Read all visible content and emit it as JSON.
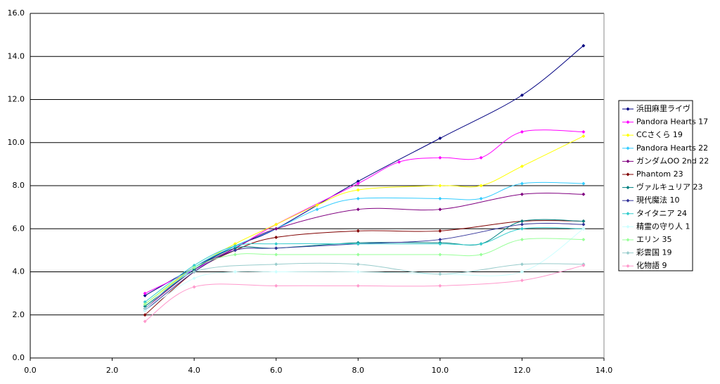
{
  "chart_data": {
    "type": "scatter-smooth",
    "xlim": [
      0,
      14
    ],
    "xticks": [
      {
        "value": 0,
        "label": "0.0"
      },
      {
        "value": 2,
        "label": "2.0"
      },
      {
        "value": 4,
        "label": "4.0"
      },
      {
        "value": 6,
        "label": "6.0"
      },
      {
        "value": 8,
        "label": "8.0"
      },
      {
        "value": 10,
        "label": "10.0"
      },
      {
        "value": 12,
        "label": "12.0"
      },
      {
        "value": 14,
        "label": "14.0"
      }
    ],
    "ylim": [
      0,
      16
    ],
    "yticks": [
      {
        "value": 0,
        "label": "0.0"
      },
      {
        "value": 2,
        "label": "2.0"
      },
      {
        "value": 4,
        "label": "4.0"
      },
      {
        "value": 6,
        "label": "6.0"
      },
      {
        "value": 8,
        "label": "8.0"
      },
      {
        "value": 10,
        "label": "10.0"
      },
      {
        "value": 12,
        "label": "12.0"
      },
      {
        "value": 14,
        "label": "14.0"
      },
      {
        "value": 16,
        "label": "16.0"
      }
    ],
    "grid": true,
    "legend_position": "right",
    "series": [
      {
        "name": "浜田麻里ライヴ",
        "color": "#000080",
        "x": [
          2.8,
          4,
          5,
          6,
          8,
          10,
          12,
          13.5
        ],
        "values": [
          2.9,
          4.2,
          5.2,
          6.0,
          8.2,
          10.2,
          12.2,
          14.5
        ]
      },
      {
        "name": "Pandora Hearts 17",
        "color": "#ff00ff",
        "x": [
          2.8,
          4,
          5,
          6,
          8,
          9,
          10,
          11,
          12,
          13.5
        ],
        "values": [
          3.0,
          4.1,
          5.1,
          6.2,
          8.1,
          9.1,
          9.3,
          9.3,
          10.5,
          10.5
        ]
      },
      {
        "name": "CCさくら  19",
        "color": "#ffff00",
        "x": [
          2.8,
          4,
          5,
          6,
          7,
          8,
          10,
          11,
          12,
          13.5
        ],
        "values": [
          2.5,
          4.2,
          5.3,
          6.2,
          7.1,
          7.8,
          8.0,
          8.0,
          8.9,
          10.3
        ]
      },
      {
        "name": "Pandora Hearts 22",
        "color": "#33ccff",
        "x": [
          2.8,
          4,
          5,
          6,
          7,
          8,
          10,
          11,
          12,
          13.5
        ],
        "values": [
          2.3,
          4.2,
          5.2,
          6.0,
          6.9,
          7.4,
          7.4,
          7.4,
          8.1,
          8.1
        ]
      },
      {
        "name": "ガンダムOO 2nd 22",
        "color": "#800080",
        "x": [
          2.8,
          4,
          5,
          6,
          8,
          10,
          12,
          13.5
        ],
        "values": [
          2.3,
          4.1,
          5.1,
          6.0,
          6.9,
          6.9,
          7.6,
          7.6
        ]
      },
      {
        "name": "Phantom 23",
        "color": "#800000",
        "x": [
          2.8,
          4,
          5,
          6,
          8,
          10,
          12,
          13.5
        ],
        "values": [
          2.0,
          4.0,
          5.0,
          5.6,
          5.9,
          5.9,
          6.35,
          6.35
        ]
      },
      {
        "name": "ヴァルキュリア 23",
        "color": "#008080",
        "x": [
          2.8,
          4,
          5,
          6,
          8,
          10,
          11,
          12,
          13.5
        ],
        "values": [
          2.4,
          4.1,
          5.1,
          5.1,
          5.35,
          5.35,
          5.3,
          6.35,
          6.35
        ]
      },
      {
        "name": "現代魔法 10",
        "color": "#333399",
        "x": [
          2.8,
          4,
          5,
          6,
          8,
          10,
          12,
          13.5
        ],
        "values": [
          2.2,
          4.0,
          5.0,
          5.1,
          5.3,
          5.5,
          6.2,
          6.2
        ]
      },
      {
        "name": "タイタニア 24",
        "color": "#33cccc",
        "x": [
          2.8,
          4,
          5,
          6,
          8,
          10,
          11,
          12,
          13.5
        ],
        "values": [
          2.6,
          4.3,
          5.2,
          5.3,
          5.3,
          5.3,
          5.3,
          6.0,
          6.0
        ]
      },
      {
        "name": "精霊の守り人 1",
        "color": "#ccffff",
        "x": [
          2.8,
          4,
          5,
          6,
          8,
          10,
          12,
          13.5
        ],
        "values": [
          2.2,
          3.7,
          4.0,
          4.0,
          4.0,
          3.9,
          4.0,
          6.0
        ]
      },
      {
        "name": "エリン 35",
        "color": "#99ff99",
        "x": [
          2.8,
          4,
          5,
          6,
          8,
          10,
          11,
          12,
          13.5
        ],
        "values": [
          2.5,
          4.2,
          4.8,
          4.8,
          4.8,
          4.8,
          4.8,
          5.5,
          5.5
        ]
      },
      {
        "name": "彩雲国  19",
        "color": "#99cccc",
        "x": [
          2.8,
          4,
          6,
          8,
          10,
          12,
          13.5
        ],
        "values": [
          2.3,
          4.0,
          4.35,
          4.35,
          3.9,
          4.35,
          4.35
        ]
      },
      {
        "name": "化物語  9",
        "color": "#ff99cc",
        "x": [
          2.8,
          4,
          6,
          8,
          10,
          12,
          13.5
        ],
        "values": [
          1.7,
          3.3,
          3.35,
          3.35,
          3.35,
          3.6,
          4.3
        ]
      }
    ]
  }
}
